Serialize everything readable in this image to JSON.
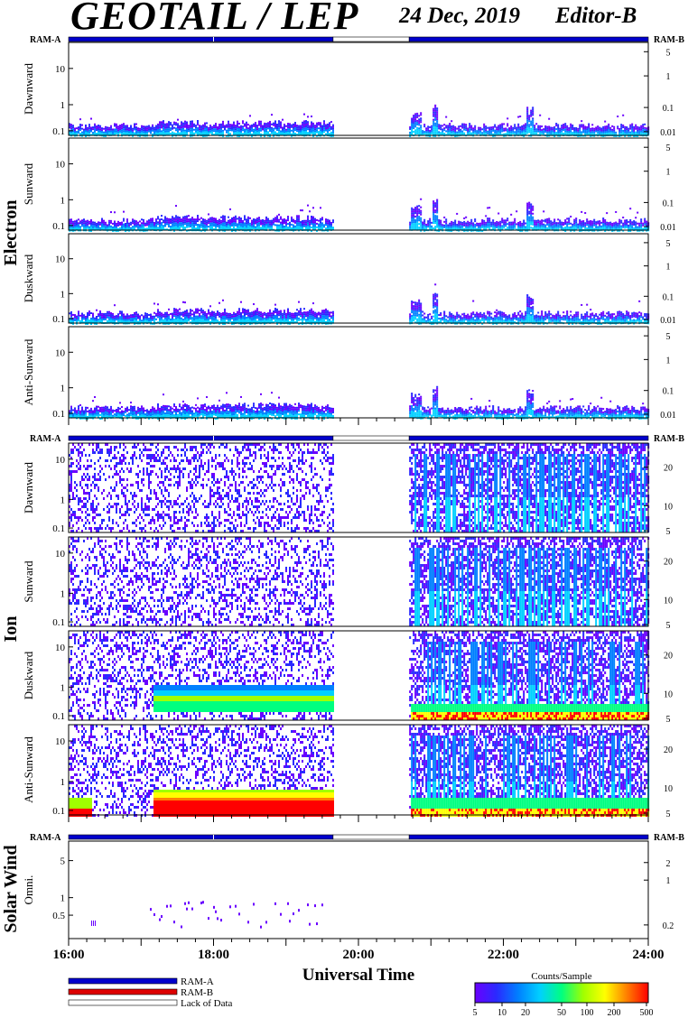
{
  "header": {
    "title": "GEOTAIL / LEP",
    "date": "24 Dec, 2019",
    "editor": "Editor-B"
  },
  "colors": {
    "ram_a": "#0000cc",
    "ram_b": "#dd0000",
    "lack_of_data": "#ffffff",
    "spectrogram_scale": [
      "#6a00ff",
      "#2a2aff",
      "#0080ff",
      "#00d0ff",
      "#00ff80",
      "#a0ff00",
      "#ffff00",
      "#ff8000",
      "#ff0000"
    ]
  },
  "status_bar_labels": {
    "left": "RAM-A",
    "right": "RAM-B"
  },
  "groups": [
    {
      "label": "Electron"
    },
    {
      "label": "Ion"
    },
    {
      "label": "Solar Wind"
    }
  ],
  "chart_data": [
    {
      "type": "heatmap",
      "group": "Electron",
      "title": "",
      "ylabel": "Dawnward",
      "y_left_ticks": [
        "10",
        "1",
        "0.1"
      ],
      "y_right_ticks": [
        "5",
        "1",
        "0.1",
        "0.01"
      ]
    },
    {
      "type": "heatmap",
      "group": "Electron",
      "title": "",
      "ylabel": "Sunward",
      "y_left_ticks": [
        "10",
        "1",
        "0.1"
      ],
      "y_right_ticks": [
        "5",
        "1",
        "0.1",
        "0.01"
      ]
    },
    {
      "type": "heatmap",
      "group": "Electron",
      "title": "",
      "ylabel": "Duskward",
      "y_left_ticks": [
        "10",
        "1",
        "0.1"
      ],
      "y_right_ticks": [
        "5",
        "1",
        "0.1",
        "0.01"
      ]
    },
    {
      "type": "heatmap",
      "group": "Electron",
      "title": "",
      "ylabel": "Anti-Sunward",
      "y_left_ticks": [
        "10",
        "1",
        "0.1"
      ],
      "y_right_ticks": [
        "5",
        "1",
        "0.1",
        "0.01"
      ]
    },
    {
      "type": "heatmap",
      "group": "Ion",
      "title": "",
      "ylabel": "Dawnward",
      "y_left_ticks": [
        "10",
        "1",
        "0.1"
      ],
      "y_right_ticks": [
        "20",
        "10",
        "5"
      ]
    },
    {
      "type": "heatmap",
      "group": "Ion",
      "title": "",
      "ylabel": "Sunward",
      "y_left_ticks": [
        "10",
        "1",
        "0.1"
      ],
      "y_right_ticks": [
        "20",
        "10",
        "5"
      ]
    },
    {
      "type": "heatmap",
      "group": "Ion",
      "title": "",
      "ylabel": "Duskward",
      "y_left_ticks": [
        "10",
        "1",
        "0.1"
      ],
      "y_right_ticks": [
        "20",
        "10",
        "5"
      ]
    },
    {
      "type": "heatmap",
      "group": "Ion",
      "title": "",
      "ylabel": "Anti-Sunward",
      "y_left_ticks": [
        "10",
        "1",
        "0.1"
      ],
      "y_right_ticks": [
        "20",
        "10",
        "5"
      ]
    },
    {
      "type": "heatmap",
      "group": "Solar Wind",
      "title": "",
      "ylabel": "Omni.",
      "y_left_ticks": [
        "5",
        "1",
        "0.5"
      ],
      "y_right_ticks": [
        "2",
        "1",
        "0.2"
      ]
    }
  ],
  "x_axis": {
    "label": "Universal Time",
    "ticks": [
      "16:00",
      "18:00",
      "20:00",
      "22:00",
      "24:00"
    ],
    "xlim_hours": [
      16,
      24
    ],
    "data_gap_hours": [
      19.65,
      20.7
    ]
  },
  "legend": {
    "ram_a_label": "RAM-A",
    "ram_b_label": "RAM-B",
    "lack_label": "Lack of Data"
  },
  "colorbar": {
    "title": "Counts/Sample",
    "ticks": [
      "5",
      "10",
      "20",
      "50",
      "100",
      "200",
      "500"
    ]
  }
}
